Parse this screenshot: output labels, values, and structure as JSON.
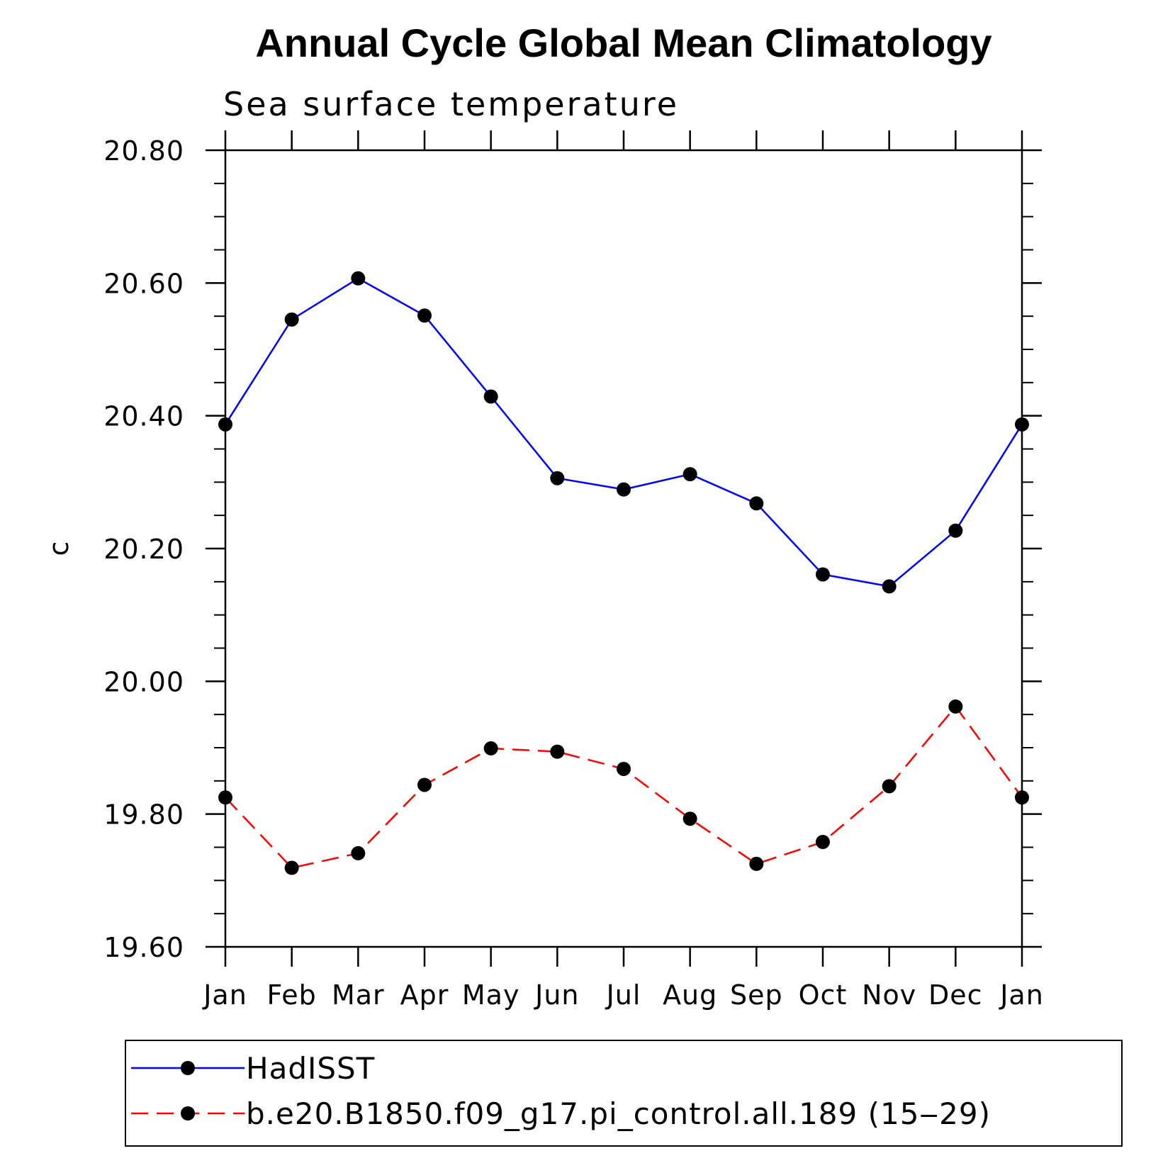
{
  "chart_data": {
    "type": "line",
    "title": "Annual Cycle Global Mean Climatology",
    "subtitle": "Sea surface temperature",
    "xlabel": "",
    "ylabel": "c",
    "categories": [
      "Jan",
      "Feb",
      "Mar",
      "Apr",
      "May",
      "Jun",
      "Jul",
      "Aug",
      "Sep",
      "Oct",
      "Nov",
      "Dec",
      "Jan"
    ],
    "ylim": [
      19.6,
      20.8
    ],
    "yticks": [
      "19.60",
      "19.80",
      "20.00",
      "20.20",
      "20.40",
      "20.60",
      "20.80"
    ],
    "grid": false,
    "legend_position": "bottom",
    "series": [
      {
        "name": "HadISST",
        "color": "#0000ff",
        "style": "solid",
        "marker": "filled-circle",
        "values": [
          20.387,
          20.545,
          20.607,
          20.551,
          20.429,
          20.306,
          20.289,
          20.312,
          20.268,
          20.161,
          20.143,
          20.227,
          20.387
        ]
      },
      {
        "name": "b.e20.B1850.f09_g17.pi_control.all.189 (15‒29)",
        "color": "#ff0000",
        "style": "dashed",
        "marker": "filled-circle",
        "values": [
          19.825,
          19.719,
          19.741,
          19.844,
          19.899,
          19.894,
          19.868,
          19.793,
          19.725,
          19.758,
          19.842,
          19.962,
          19.825
        ]
      }
    ]
  }
}
